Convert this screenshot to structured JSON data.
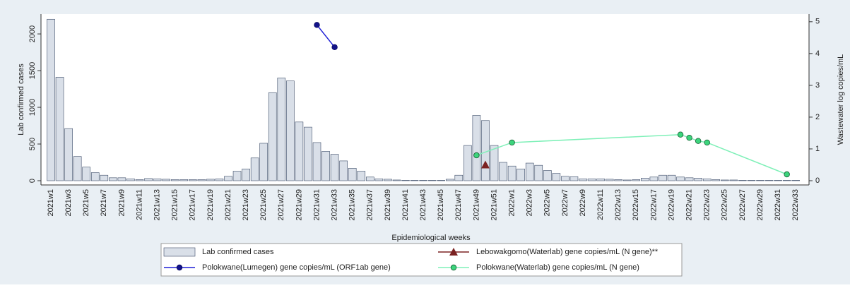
{
  "chart_data": {
    "type": "bar",
    "xlabel": "Epidemiological weeks",
    "ylabel": "Lab confirmed cases",
    "y2label": "Wastewater log copies/mL",
    "categories": [
      "2021w1",
      null,
      "2021w3",
      null,
      "2021w5",
      null,
      "2021w7",
      null,
      "2021w9",
      null,
      "2021w11",
      null,
      "2021w13",
      null,
      "2021w15",
      null,
      "2021w17",
      null,
      "2021w19",
      null,
      "2021w21",
      null,
      "2021w23",
      null,
      "2021w25",
      null,
      "2021w27",
      null,
      "2021w29",
      null,
      "2021w31",
      null,
      "2021w33",
      null,
      "2021w35",
      null,
      "2021w37",
      null,
      "2021w39",
      null,
      "2021w41",
      null,
      "2021w43",
      null,
      "2021w45",
      null,
      "2021w47",
      null,
      "2021w49",
      null,
      "2021w51",
      null,
      "2022w1",
      null,
      "2022w3",
      null,
      "2022w5",
      null,
      "2022w7",
      null,
      "2022w9",
      null,
      "2022w11",
      null,
      "2022w13",
      null,
      "2022w15",
      null,
      "2022w17",
      null,
      "2022w19",
      null,
      "2022w21",
      null,
      "2022w23",
      null,
      "2022w25",
      null,
      "2022w27",
      null,
      "2022w29",
      null,
      "2022w31",
      null,
      "2022w33"
    ],
    "series": [
      {
        "name": "Lab confirmed cases",
        "color": "#d9dfe8",
        "values": [
          2200,
          1410,
          710,
          330,
          185,
          110,
          75,
          40,
          40,
          25,
          15,
          30,
          25,
          20,
          15,
          15,
          15,
          15,
          20,
          25,
          60,
          130,
          160,
          310,
          510,
          1200,
          1400,
          1360,
          800,
          730,
          520,
          400,
          360,
          270,
          170,
          130,
          50,
          25,
          20,
          10,
          5,
          5,
          5,
          5,
          5,
          20,
          75,
          480,
          890,
          820,
          480,
          250,
          200,
          160,
          240,
          210,
          140,
          100,
          60,
          55,
          25,
          25,
          25,
          20,
          15,
          10,
          15,
          35,
          50,
          75,
          75,
          50,
          40,
          35,
          25,
          15,
          10,
          10,
          5,
          5,
          5,
          5,
          5,
          5,
          5
        ]
      },
      {
        "name": "Polokwane(Lumegen) gene copies/mL (ORF1ab gene)",
        "type": "line",
        "axis": "y2",
        "color": "#1f1fd6",
        "marker": "circle",
        "x": [
          "2021w31",
          "2021w33"
        ],
        "values": [
          4.9,
          4.2
        ]
      },
      {
        "name": "Lebowakgomo(Waterlab) gene copies/mL (N gene)**",
        "type": "line",
        "axis": "y2",
        "color": "#7b2222",
        "marker": "triangle",
        "x": [
          "2021w50"
        ],
        "values": [
          0.5
        ]
      },
      {
        "name": "Polokwane(Waterlab) gene copies/mL (N gene)",
        "type": "line",
        "axis": "y2",
        "color": "#7ff0b8",
        "marker": "circle",
        "x": [
          "2021w49",
          "2022w1",
          "2022w20",
          "2022w21",
          "2022w22",
          "2022w23",
          "2022w32"
        ],
        "values": [
          0.8,
          1.2,
          1.45,
          1.35,
          1.25,
          1.2,
          0.2
        ]
      }
    ],
    "ylim": [
      0,
      2270
    ],
    "yticks": [
      0,
      500,
      1000,
      1500,
      2000
    ],
    "y2lim": [
      0,
      5.24
    ],
    "y2ticks": [
      0,
      1,
      2,
      3,
      4,
      5
    ],
    "grid": false
  }
}
